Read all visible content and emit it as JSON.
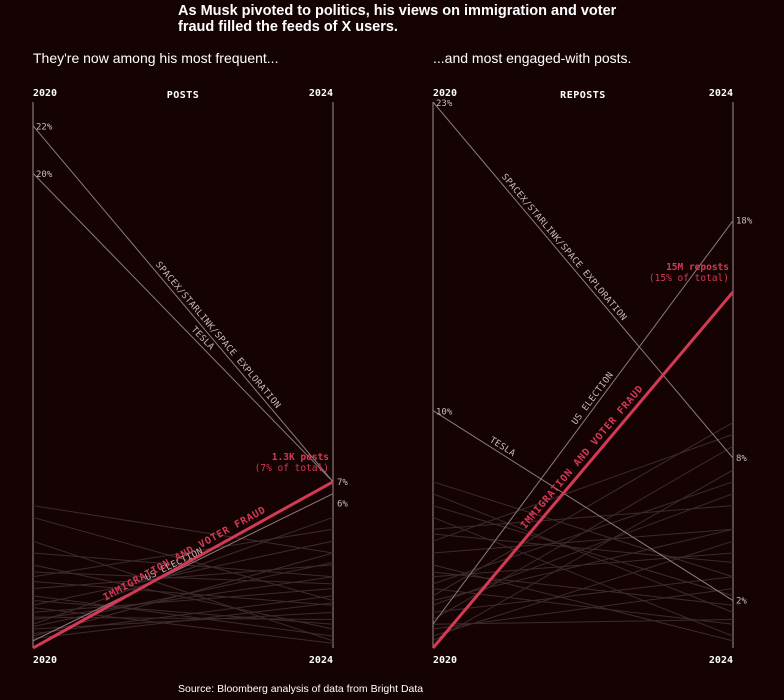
{
  "headline": "As Musk pivoted to politics, his views on immigration and voter fraud filled the feeds of X users.",
  "headline_lines": [
    "As Musk pivoted to politics, his views on immigration and voter",
    "fraud filled the feeds of X users."
  ],
  "source": "Source: Bloomberg analysis of data from Bright Data",
  "colors": {
    "background": "#150304",
    "highlight": "#d33a55",
    "line": "#8c7c7e",
    "faint": "#3c2b2d",
    "text": "#ffffff",
    "axis": "#9a8f90"
  },
  "chart_data": [
    {
      "type": "slope",
      "title": "POSTS",
      "subtitle": "They're now among his most frequent...",
      "x": [
        "2020",
        "2024"
      ],
      "ylim": [
        0,
        23
      ],
      "series": [
        {
          "name": "SPACEX/STARLINK/SPACE EXPLORATION",
          "values": [
            22,
            7
          ],
          "start_label": "22%",
          "end_label": "7%",
          "style": "labeled"
        },
        {
          "name": "TESLA",
          "values": [
            20,
            7
          ],
          "start_label": "20%",
          "end_label": "",
          "style": "labeled"
        },
        {
          "name": "US ELECTION",
          "values": [
            0.3,
            6.5
          ],
          "start_label": "",
          "end_label": "6%",
          "style": "labeled"
        },
        {
          "name": "IMMIGRATION AND VOTER FRAUD",
          "values": [
            0,
            7
          ],
          "start_label": "",
          "end_label": "",
          "style": "highlight"
        }
      ],
      "annotation": {
        "lines": [
          "1.3K posts",
          "(7% of total)"
        ]
      },
      "other_series": [
        [
          6,
          4
        ],
        [
          5.5,
          2
        ],
        [
          3,
          5
        ],
        [
          2.5,
          3.5
        ],
        [
          2,
          1
        ],
        [
          1.8,
          4.5
        ],
        [
          1.5,
          2.5
        ],
        [
          1.2,
          3
        ],
        [
          1,
          5.5
        ],
        [
          0.8,
          1.5
        ],
        [
          0.5,
          4
        ],
        [
          3.5,
          0.8
        ],
        [
          4,
          3
        ],
        [
          2.2,
          0.5
        ],
        [
          1.3,
          1.2
        ],
        [
          0.6,
          2.2
        ],
        [
          2.8,
          1.8
        ],
        [
          4.5,
          0.3
        ],
        [
          1.7,
          0.2
        ],
        [
          0.9,
          3.6
        ],
        [
          3.2,
          2.7
        ],
        [
          0.4,
          1.9
        ]
      ]
    },
    {
      "type": "slope",
      "title": "REPOSTS",
      "subtitle": "...and most engaged-with posts.",
      "x": [
        "2020",
        "2024"
      ],
      "ylim": [
        0,
        23
      ],
      "series": [
        {
          "name": "SPACEX/STARLINK/SPACE EXPLORATION",
          "values": [
            23,
            8
          ],
          "start_label": "23%",
          "end_label": "8%",
          "style": "labeled"
        },
        {
          "name": "US ELECTION",
          "values": [
            1,
            18
          ],
          "start_label": "",
          "end_label": "18%",
          "style": "labeled"
        },
        {
          "name": "TESLA",
          "values": [
            10,
            2
          ],
          "start_label": "10%",
          "end_label": "2%",
          "style": "labeled"
        },
        {
          "name": "IMMIGRATION AND VOTER FRAUD",
          "values": [
            0,
            15
          ],
          "start_label": "",
          "end_label": "",
          "style": "highlight"
        }
      ],
      "annotation": {
        "lines": [
          "15M reposts",
          "(15% of total)"
        ]
      },
      "other_series": [
        [
          7,
          3
        ],
        [
          6.5,
          1.5
        ],
        [
          5,
          6
        ],
        [
          4.5,
          9
        ],
        [
          3,
          4
        ],
        [
          2.7,
          7
        ],
        [
          2.5,
          1
        ],
        [
          2,
          5
        ],
        [
          1.5,
          3
        ],
        [
          1.2,
          8.5
        ],
        [
          0.8,
          2.5
        ],
        [
          5.5,
          0.5
        ],
        [
          4,
          5
        ],
        [
          3.5,
          0.3
        ],
        [
          1.8,
          6.5
        ],
        [
          0.5,
          4.5
        ],
        [
          6,
          2.2
        ],
        [
          2.2,
          9.5
        ],
        [
          3.2,
          1.8
        ],
        [
          0.3,
          7.5
        ],
        [
          4.8,
          3.6
        ],
        [
          1,
          1.2
        ]
      ]
    }
  ]
}
